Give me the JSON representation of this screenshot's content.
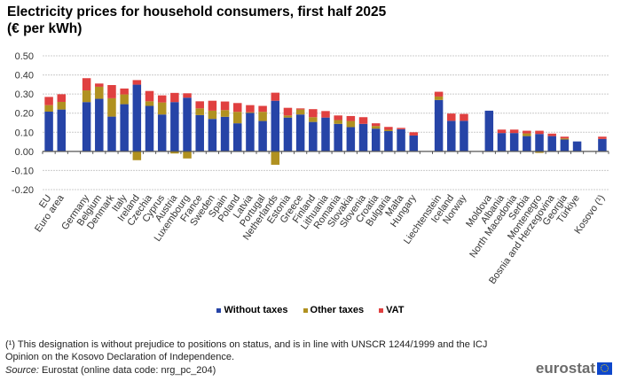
{
  "chart_data": {
    "type": "bar",
    "stacked": true,
    "title": "Electricity prices for household consumers, first half 2025",
    "subtitle": "(€ per kWh)",
    "ylim": [
      -0.2,
      0.5
    ],
    "yticks": [
      "0.50",
      "0.40",
      "0.30",
      "0.20",
      "0.10",
      "0.00",
      "-0.10",
      "-0.20"
    ],
    "grid": true,
    "legend_position": "bottom",
    "categories": [
      "EU",
      "Euro area",
      "",
      "Germany",
      "Belgium",
      "Denmark",
      "Italy",
      "Ireland",
      "Czechia",
      "Cyprus",
      "Austria",
      "Luxembourg",
      "France",
      "Sweden",
      "Spain",
      "Poland",
      "Latvia",
      "Portugal",
      "Netherlands",
      "Estonia",
      "Greece",
      "Finland",
      "Lithuania",
      "Romania",
      "Slovakia",
      "Slovenia",
      "Croatia",
      "Bulgaria",
      "Malta",
      "Hungary",
      "",
      "Liechtenstein",
      "Iceland",
      "Norway",
      "",
      "Moldova",
      "Albania",
      "North Macedonia",
      "Serbia",
      "Montenegro",
      "Bosnia and Herzegovina",
      "Georgia",
      "Türkiye",
      "",
      "Kosovo (¹)"
    ],
    "series": [
      {
        "name": "Without taxes",
        "color": "#2644a7",
        "values": [
          0.208,
          0.219,
          null,
          0.258,
          0.275,
          0.182,
          0.247,
          0.349,
          0.238,
          0.193,
          0.258,
          0.281,
          0.19,
          0.17,
          0.181,
          0.147,
          0.201,
          0.159,
          0.265,
          0.177,
          0.193,
          0.154,
          0.177,
          0.144,
          0.127,
          0.144,
          0.119,
          0.106,
          0.116,
          0.083,
          null,
          0.269,
          0.16,
          0.16,
          null,
          0.213,
          0.096,
          0.096,
          0.08,
          0.091,
          0.08,
          0.062,
          0.052,
          null,
          0.065
        ]
      },
      {
        "name": "Other taxes",
        "color": "#b09120",
        "values": [
          0.034,
          0.04,
          null,
          0.061,
          0.063,
          0.096,
          0.051,
          -0.046,
          0.024,
          0.063,
          -0.011,
          -0.037,
          0.035,
          0.043,
          0.035,
          0.06,
          0.004,
          0.048,
          -0.07,
          0.011,
          0.026,
          0.025,
          0.0,
          0.02,
          0.032,
          0.0,
          0.014,
          0.007,
          0.0,
          0.0,
          null,
          0.018,
          0.0,
          0.0,
          null,
          0.0,
          0.0,
          0.0,
          0.014,
          -0.008,
          0.0,
          0.006,
          0.0,
          null,
          0.0
        ]
      },
      {
        "name": "VAT",
        "color": "#e04040",
        "values": [
          0.043,
          0.04,
          null,
          0.064,
          0.017,
          0.069,
          0.031,
          0.024,
          0.054,
          0.037,
          0.048,
          0.023,
          0.037,
          0.052,
          0.045,
          0.046,
          0.037,
          0.031,
          0.042,
          0.04,
          0.006,
          0.042,
          0.034,
          0.024,
          0.026,
          0.035,
          0.014,
          0.015,
          0.007,
          0.017,
          null,
          0.025,
          0.038,
          0.036,
          null,
          0.0,
          0.018,
          0.018,
          0.014,
          0.017,
          0.013,
          0.009,
          0.0,
          null,
          0.012
        ]
      }
    ]
  },
  "footnote_line1": "(¹) This designation is without prejudice to positions on status, and is in line with UNSCR 1244/1999 and the ICJ",
  "footnote_line2": "Opinion on the Kosovo Declaration of Independence.",
  "source_label": "Source:",
  "source_text": " Eurostat (online data code: nrg_pc_204)",
  "logo_text": "eurostat"
}
